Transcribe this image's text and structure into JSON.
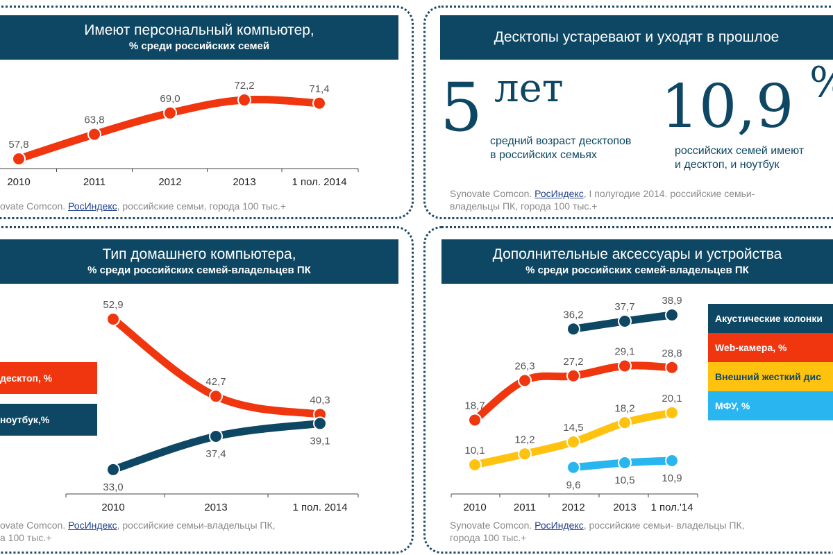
{
  "colors": {
    "navy": "#0e4763",
    "red": "#f0360f",
    "yellow": "#ffc20e",
    "cyan": "#29b6f0"
  },
  "panel1": {
    "title": "Имеют персональный компьютер,",
    "subtitle": "% среди российских семей",
    "source_pre": "ovate Comcon. ",
    "source_link": "РосИндекс",
    "source_post": ", российские семьи, города 100 тыс.+"
  },
  "panel2": {
    "title": "Десктопы устаревают и уходят в прошлое",
    "stat1_value": "5",
    "stat1_unit": "лет",
    "stat1_desc_line1": "средний возраст десктопов",
    "stat1_desc_line2": "в российских семьях",
    "stat2_value": "10,9",
    "stat2_unit": "%",
    "stat2_desc_line1": "российских семей имеют",
    "stat2_desc_line2": "и десктоп, и ноутбук",
    "source_pre": "Synovate Comcon. ",
    "source_link": "РосИндекс",
    "source_post": ", I полугодие 2014. российские семьи-",
    "source_line2": "владельцы ПК, города 100 тыс.+"
  },
  "panel3": {
    "title": "Тип домашнего компьютера,",
    "subtitle": "% среди российских семей-владельцев ПК",
    "legend_desktop": "десктоп, %",
    "legend_laptop": "ноутбук,%",
    "source_pre": "ovate Comcon. ",
    "source_link": "РосИндекс",
    "source_post": ", российские семьи-владельцы ПК,",
    "source_line2": "а 100 тыс.+"
  },
  "panel4": {
    "title": "Дополнительные аксессуары и устройства",
    "subtitle": "% среди российских семей-владельцев ПК",
    "legend": [
      "Акустические колонки",
      "Web-камера, %",
      "Внешний жесткий дис",
      "МФУ, %"
    ],
    "source_pre": "Synovate Comcon. ",
    "source_link": "РосИндекс",
    "source_post": ", российские семьи- владельцы ПК,",
    "source_line2": "города 100 тыс.+"
  },
  "chart_data": [
    {
      "type": "line",
      "title": "Имеют персональный компьютер, % среди российских семей",
      "categories": [
        "2010",
        "2011",
        "2012",
        "2013",
        "1 пол. 2014"
      ],
      "series": [
        {
          "values": [
            57.8,
            63.8,
            69.0,
            72.2,
            71.4
          ],
          "labels": [
            "57,8",
            "63,8",
            "69,0",
            "72,2",
            "71,4"
          ],
          "color": "#f0360f"
        }
      ]
    },
    {
      "type": "line",
      "title": "Тип домашнего компьютера, % среди российских семей-владельцев ПК",
      "categories": [
        "2010",
        "2013",
        "1 пол. 2014"
      ],
      "series": [
        {
          "name": "десктоп, %",
          "values": [
            52.9,
            42.7,
            40.3
          ],
          "labels": [
            "52,9",
            "42,7",
            "40,3"
          ],
          "color": "#f0360f"
        },
        {
          "name": "ноутбук,%",
          "values": [
            33.0,
            37.4,
            39.1
          ],
          "labels": [
            "33,0",
            "37,4",
            "39,1"
          ],
          "color": "#0e4763"
        }
      ]
    },
    {
      "type": "line",
      "title": "Дополнительные аксессуары и устройства % среди российских семей-владельцев ПК",
      "categories": [
        "2010",
        "2011",
        "2012",
        "2013",
        "1 пол.'14"
      ],
      "series": [
        {
          "name": "Акустические колонки",
          "values": [
            null,
            null,
            36.2,
            37.7,
            38.9
          ],
          "labels": [
            null,
            null,
            "36,2",
            "37,7",
            "38,9"
          ],
          "color": "#0e4763"
        },
        {
          "name": "Web-камера, %",
          "values": [
            18.7,
            26.3,
            27.2,
            29.1,
            28.8
          ],
          "labels": [
            "18,7",
            "26,3",
            "27,2",
            "29,1",
            "28,8"
          ],
          "color": "#f0360f"
        },
        {
          "name": "Внешний жесткий дис",
          "values": [
            10.1,
            12.2,
            14.5,
            18.2,
            20.1
          ],
          "labels": [
            "10,1",
            "12,2",
            "14,5",
            "18,2",
            "20,1"
          ],
          "color": "#ffc20e"
        },
        {
          "name": "МФУ, %",
          "values": [
            null,
            null,
            9.6,
            10.5,
            10.9
          ],
          "labels": [
            null,
            null,
            "9,6",
            "10,5",
            "10,9"
          ],
          "color": "#29b6f0"
        }
      ]
    }
  ]
}
